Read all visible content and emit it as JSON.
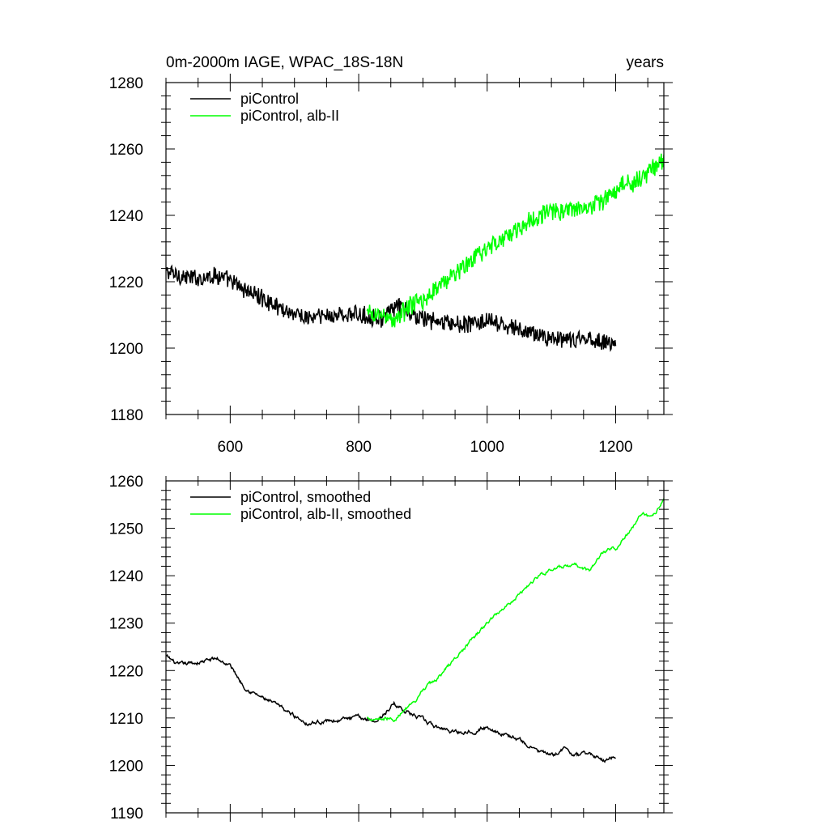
{
  "chart_data": [
    {
      "type": "line",
      "title": "0m-2000m IAGE, WPAC_18S-18N",
      "units_label": "years",
      "xlim": [
        500,
        1275
      ],
      "ylim": [
        1180,
        1280
      ],
      "x_ticks": [
        600,
        800,
        1000,
        1200
      ],
      "y_ticks": [
        1180,
        1200,
        1220,
        1240,
        1260,
        1280
      ],
      "x_minor_step": 50,
      "y_minor_step": 4,
      "show_x_tick_labels": true,
      "legend_position": "top-left",
      "series": [
        {
          "name": "piControl",
          "color": "#000000",
          "x_start": 500,
          "x_end": 1200,
          "anchors": [
            [
              500,
              1223
            ],
            [
              540,
              1221
            ],
            [
              580,
              1222
            ],
            [
              600,
              1220
            ],
            [
              640,
              1216
            ],
            [
              680,
              1212
            ],
            [
              720,
              1209
            ],
            [
              760,
              1210
            ],
            [
              800,
              1210
            ],
            [
              840,
              1209
            ],
            [
              860,
              1213
            ],
            [
              880,
              1210
            ],
            [
              920,
              1208
            ],
            [
              960,
              1207
            ],
            [
              1000,
              1208
            ],
            [
              1040,
              1206
            ],
            [
              1080,
              1204
            ],
            [
              1120,
              1202
            ],
            [
              1160,
              1203
            ],
            [
              1200,
              1201
            ]
          ],
          "noise": 2.4
        },
        {
          "name": "piControl, alb-II",
          "color": "#00ff00",
          "x_start": 813,
          "x_end": 1275,
          "anchors": [
            [
              813,
              1210
            ],
            [
              840,
              1210
            ],
            [
              855,
              1208
            ],
            [
              880,
              1213
            ],
            [
              900,
              1214
            ],
            [
              920,
              1218
            ],
            [
              960,
              1224
            ],
            [
              1000,
              1230
            ],
            [
              1040,
              1235
            ],
            [
              1080,
              1240
            ],
            [
              1100,
              1241
            ],
            [
              1140,
              1242
            ],
            [
              1180,
              1244
            ],
            [
              1200,
              1248
            ],
            [
              1240,
              1251
            ],
            [
              1275,
              1257
            ]
          ],
          "noise": 2.6
        }
      ]
    },
    {
      "type": "line",
      "title": "",
      "xlim": [
        500,
        1275
      ],
      "ylim": [
        1190,
        1260
      ],
      "x_ticks": [
        600,
        800,
        1000,
        1200
      ],
      "y_ticks": [
        1190,
        1200,
        1210,
        1220,
        1230,
        1240,
        1250,
        1260
      ],
      "x_minor_step": 50,
      "y_minor_step": 2,
      "show_x_tick_labels": false,
      "legend_position": "top-left",
      "series": [
        {
          "name": "piControl, smoothed",
          "color": "#000000",
          "x_start": 500,
          "x_end": 1200,
          "anchors": [
            [
              500,
              1223
            ],
            [
              520,
              1221
            ],
            [
              560,
              1222
            ],
            [
              580,
              1222.5
            ],
            [
              600,
              1221
            ],
            [
              620,
              1217
            ],
            [
              640,
              1215
            ],
            [
              680,
              1212
            ],
            [
              720,
              1209
            ],
            [
              760,
              1209.5
            ],
            [
              800,
              1210
            ],
            [
              830,
              1209.5
            ],
            [
              855,
              1213
            ],
            [
              880,
              1211
            ],
            [
              920,
              1208
            ],
            [
              960,
              1207
            ],
            [
              1000,
              1208
            ],
            [
              1040,
              1206
            ],
            [
              1080,
              1203
            ],
            [
              1100,
              1202
            ],
            [
              1120,
              1203.5
            ],
            [
              1140,
              1202
            ],
            [
              1160,
              1202.5
            ],
            [
              1180,
              1201
            ],
            [
              1200,
              1202
            ]
          ],
          "noise": 0.5
        },
        {
          "name": "piControl, alb-II, smoothed",
          "color": "#00ff00",
          "x_start": 813,
          "x_end": 1275,
          "anchors": [
            [
              813,
              1210
            ],
            [
              850,
              1210
            ],
            [
              855,
              1209
            ],
            [
              870,
              1212
            ],
            [
              890,
              1213
            ],
            [
              900,
              1216
            ],
            [
              920,
              1218
            ],
            [
              960,
              1224
            ],
            [
              1000,
              1230
            ],
            [
              1040,
              1235
            ],
            [
              1080,
              1240
            ],
            [
              1100,
              1241.5
            ],
            [
              1140,
              1242
            ],
            [
              1160,
              1241
            ],
            [
              1180,
              1245
            ],
            [
              1200,
              1246
            ],
            [
              1220,
              1249
            ],
            [
              1240,
              1253
            ],
            [
              1255,
              1252
            ],
            [
              1275,
              1256
            ]
          ],
          "noise": 0.45
        }
      ]
    }
  ]
}
